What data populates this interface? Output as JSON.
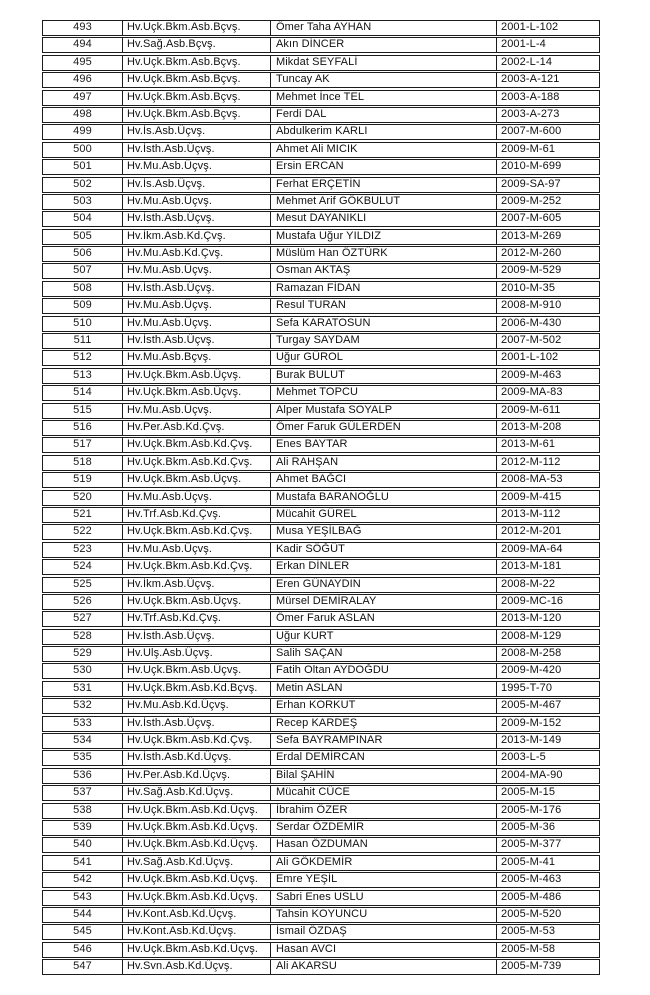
{
  "table": {
    "rows": [
      {
        "no": "493",
        "rank": "Hv.Uçk.Bkm.Asb.Bçvş.",
        "name": "Ömer Taha AYHAN",
        "code": "2001-L-102"
      },
      {
        "no": "494",
        "rank": "Hv.Sağ.Asb.Bçvş.",
        "name": "Akın DİNCER",
        "code": "2001-L-4"
      },
      {
        "no": "495",
        "rank": "Hv.Uçk.Bkm.Asb.Bçvş.",
        "name": "Mikdat SEYFALİ",
        "code": "2002-L-14"
      },
      {
        "no": "496",
        "rank": "Hv.Uçk.Bkm.Asb.Bçvş.",
        "name": "Tuncay AK",
        "code": "2003-A-121"
      },
      {
        "no": "497",
        "rank": "Hv.Uçk.Bkm.Asb.Bçvş.",
        "name": "Mehmet İnce TEL",
        "code": "2003-A-188"
      },
      {
        "no": "498",
        "rank": "Hv.Uçk.Bkm.Asb.Bçvş.",
        "name": "Ferdi DAL",
        "code": "2003-A-273"
      },
      {
        "no": "499",
        "rank": "Hv.İs.Asb.Üçvş.",
        "name": "Abdulkerim KARLI",
        "code": "2007-M-600"
      },
      {
        "no": "500",
        "rank": "Hv.İsth.Asb.Üçvş.",
        "name": "Ahmet Ali MICIK",
        "code": "2009-M-61"
      },
      {
        "no": "501",
        "rank": "Hv.Mu.Asb.Üçvş.",
        "name": "Ersin ERCAN",
        "code": "2010-M-699"
      },
      {
        "no": "502",
        "rank": "Hv.İs.Asb.Üçvş.",
        "name": "Ferhat ERÇETİN",
        "code": "2009-SA-97"
      },
      {
        "no": "503",
        "rank": "Hv.Mu.Asb.Üçvş.",
        "name": "Mehmet Arif GÖKBULUT",
        "code": "2009-M-252"
      },
      {
        "no": "504",
        "rank": "Hv.İsth.Asb.Üçvş.",
        "name": "Mesut DAYANIKLI",
        "code": "2007-M-605"
      },
      {
        "no": "505",
        "rank": "Hv.İkm.Asb.Kd.Çvş.",
        "name": "Mustafa Uğur YILDIZ",
        "code": "2013-M-269"
      },
      {
        "no": "506",
        "rank": "Hv.Mu.Asb.Kd.Çvş.",
        "name": "Müslüm Han ÖZTÜRK",
        "code": "2012-M-260"
      },
      {
        "no": "507",
        "rank": "Hv.Mu.Asb.Üçvş.",
        "name": "Osman AKTAŞ",
        "code": "2009-M-529"
      },
      {
        "no": "508",
        "rank": "Hv.İsth.Asb.Üçvş.",
        "name": "Ramazan FİDAN",
        "code": "2010-M-35"
      },
      {
        "no": "509",
        "rank": "Hv.Mu.Asb.Üçvş.",
        "name": "Resul TURAN",
        "code": "2008-M-910"
      },
      {
        "no": "510",
        "rank": "Hv.Mu.Asb.Üçvş.",
        "name": "Sefa KARATOSUN",
        "code": "2006-M-430"
      },
      {
        "no": "511",
        "rank": "Hv.İsth.Asb.Üçvş.",
        "name": "Turgay SAYDAM",
        "code": "2007-M-502"
      },
      {
        "no": "512",
        "rank": "Hv.Mu.Asb.Bçvş.",
        "name": "Uğur GÜROL",
        "code": "2001-L-102"
      },
      {
        "no": "513",
        "rank": "Hv.Uçk.Bkm.Asb.Üçvş.",
        "name": "Burak BULUT",
        "code": "2009-M-463"
      },
      {
        "no": "514",
        "rank": "Hv.Uçk.Bkm.Asb.Üçvş.",
        "name": "Mehmet TOPCU",
        "code": "2009-MA-83"
      },
      {
        "no": "515",
        "rank": "Hv.Mu.Asb.Üçvş.",
        "name": "Alper Mustafa SOYALP",
        "code": "2009-M-611"
      },
      {
        "no": "516",
        "rank": "Hv.Per.Asb.Kd.Çvş.",
        "name": "Ömer Faruk GÜLERDEN",
        "code": "2013-M-208"
      },
      {
        "no": "517",
        "rank": "Hv.Uçk.Bkm.Asb.Kd.Çvş.",
        "name": "Enes BAYTAR",
        "code": "2013-M-61"
      },
      {
        "no": "518",
        "rank": "Hv.Uçk.Bkm.Asb.Kd.Çvş.",
        "name": "Ali RAHŞAN",
        "code": "2012-M-112"
      },
      {
        "no": "519",
        "rank": "Hv.Uçk.Bkm.Asb.Üçvş.",
        "name": "Ahmet BAĞCI",
        "code": "2008-MA-53"
      },
      {
        "no": "520",
        "rank": "Hv.Mu.Asb.Üçvş.",
        "name": "Mustafa BARANOĞLU",
        "code": "2009-M-415"
      },
      {
        "no": "521",
        "rank": "Hv.Trf.Asb.Kd.Çvş.",
        "name": "Mücahit GÜREL",
        "code": "2013-M-112"
      },
      {
        "no": "522",
        "rank": "Hv.Uçk.Bkm.Asb.Kd.Çvş.",
        "name": "Musa YEŞİLBAĞ",
        "code": "2012-M-201"
      },
      {
        "no": "523",
        "rank": "Hv.Mu.Asb.Üçvş.",
        "name": "Kadir SÖĞÜT",
        "code": "2009-MA-64"
      },
      {
        "no": "524",
        "rank": "Hv.Uçk.Bkm.Asb.Kd.Çvş.",
        "name": "Erkan DİNLER",
        "code": "2013-M-181"
      },
      {
        "no": "525",
        "rank": "Hv.İkm.Asb.Üçvş.",
        "name": "Eren GÜNAYDIN",
        "code": "2008-M-22"
      },
      {
        "no": "526",
        "rank": "Hv.Uçk.Bkm.Asb.Üçvş.",
        "name": "Mürsel DEMİRALAY",
        "code": "2009-MC-16"
      },
      {
        "no": "527",
        "rank": "Hv.Trf.Asb.Kd.Çvş.",
        "name": "Ömer Faruk ASLAN",
        "code": "2013-M-120"
      },
      {
        "no": "528",
        "rank": "Hv.İsth.Asb.Üçvş.",
        "name": "Uğur KURT",
        "code": "2008-M-129"
      },
      {
        "no": "529",
        "rank": "Hv.Ulş.Asb.Üçvş.",
        "name": "Salih SAÇAN",
        "code": "2008-M-258"
      },
      {
        "no": "530",
        "rank": "Hv.Uçk.Bkm.Asb.Üçvş.",
        "name": "Fatih Oltan AYDOĞDU",
        "code": "2009-M-420"
      },
      {
        "no": "531",
        "rank": "Hv.Uçk.Bkm.Asb.Kd.Bçvş.",
        "name": "Metin ASLAN",
        "code": "1995-T-70"
      },
      {
        "no": "532",
        "rank": "Hv.Mu.Asb.Kd.Üçvş.",
        "name": "Erhan KORKUT",
        "code": "2005-M-467"
      },
      {
        "no": "533",
        "rank": "Hv.İsth.Asb.Üçvş.",
        "name": "Recep KARDEŞ",
        "code": "2009-M-152"
      },
      {
        "no": "534",
        "rank": "Hv.Uçk.Bkm.Asb.Kd.Çvş.",
        "name": "Sefa BAYRAMPINAR",
        "code": "2013-M-149"
      },
      {
        "no": "535",
        "rank": "Hv.İsth.Asb.Kd.Üçvş.",
        "name": "Erdal DEMİRCAN",
        "code": "2003-L-5"
      },
      {
        "no": "536",
        "rank": "Hv.Per.Asb.Kd.Üçvş.",
        "name": "Bilal ŞAHİN",
        "code": "2004-MA-90"
      },
      {
        "no": "537",
        "rank": "Hv.Sağ.Asb.Kd.Üçvş.",
        "name": "Mücahit CÜCE",
        "code": "2005-M-15"
      },
      {
        "no": "538",
        "rank": "Hv.Uçk.Bkm.Asb.Kd.Üçvş.",
        "name": "İbrahim ÖZER",
        "code": "2005-M-176"
      },
      {
        "no": "539",
        "rank": "Hv.Uçk.Bkm.Asb.Kd.Üçvş.",
        "name": "Serdar ÖZDEMİR",
        "code": "2005-M-36"
      },
      {
        "no": "540",
        "rank": "Hv.Uçk.Bkm.Asb.Kd.Üçvş.",
        "name": "Hasan ÖZDUMAN",
        "code": "2005-M-377"
      },
      {
        "no": "541",
        "rank": "Hv.Sağ.Asb.Kd.Üçvş.",
        "name": "Ali GÖKDEMİR",
        "code": "2005-M-41"
      },
      {
        "no": "542",
        "rank": "Hv.Uçk.Bkm.Asb.Kd.Üçvş.",
        "name": "Emre YEŞİL",
        "code": "2005-M-463"
      },
      {
        "no": "543",
        "rank": "Hv.Uçk.Bkm.Asb.Kd.Üçvş.",
        "name": "Sabri Enes USLU",
        "code": "2005-M-486"
      },
      {
        "no": "544",
        "rank": "Hv.Kont.Asb.Kd.Üçvş.",
        "name": "Tahsin KOYUNCU",
        "code": "2005-M-520"
      },
      {
        "no": "545",
        "rank": "Hv.Kont.Asb.Kd.Üçvş.",
        "name": "İsmail ÖZDAŞ",
        "code": "2005-M-53"
      },
      {
        "no": "546",
        "rank": "Hv.Uçk.Bkm.Asb.Kd.Üçvş.",
        "name": "Hasan AVCI",
        "code": "2005-M-58"
      },
      {
        "no": "547",
        "rank": "Hv.Svn.Asb.Kd.Üçvş.",
        "name": "Ali AKARSU",
        "code": "2005-M-739"
      }
    ]
  }
}
